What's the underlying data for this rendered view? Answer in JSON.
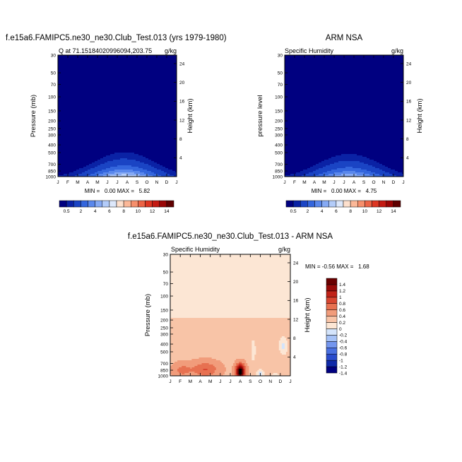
{
  "colors": {
    "abs_scale": [
      "#000080",
      "#0a22a5",
      "#1a44c4",
      "#3466dd",
      "#5a88ec",
      "#86aaf4",
      "#b3ccf9",
      "#dde8fb",
      "#fde0cd",
      "#fbb898",
      "#f68f6c",
      "#ec6446",
      "#dd3622",
      "#c41a12",
      "#9a0505",
      "#600000"
    ],
    "diff_scale": [
      "#000080",
      "#0f2aa9",
      "#2a4ccc",
      "#4a70e0",
      "#7496ee",
      "#a6c2f7",
      "#d4e4fb",
      "#fce6d4",
      "#f8c4a7",
      "#f19c7b",
      "#e77151",
      "#d84631",
      "#c02218",
      "#980a08",
      "#6a0000"
    ]
  },
  "chart_data": [
    {
      "type": "heatmap",
      "title": "f.e15a6.FAMIPC5.ne30_ne30.Club_Test.013 (yrs 1979-1980)",
      "subtitle_left": "Q at 71.15184020996094,203.75",
      "subtitle_right": "g/kg",
      "ylabel": "Pressure (mb)",
      "ylabel_right": "Height (km)",
      "x_ticks": [
        "J",
        "F",
        "M",
        "A",
        "M",
        "J",
        "J",
        "A",
        "S",
        "O",
        "N",
        "D",
        "J"
      ],
      "y_ticks": [
        "30",
        "50",
        "70",
        "100",
        "150",
        "200",
        "250",
        "300",
        "400",
        "500",
        "700",
        "850",
        "1000"
      ],
      "y_ticks_right": [
        "24",
        "20",
        "16",
        "12",
        "8",
        "4"
      ],
      "ylim": [
        1000,
        30
      ],
      "y_scale": "log",
      "stats": "MIN =   0.00 MAX =   5.82",
      "colorbar_labels": [
        "0.5",
        "2",
        "4",
        "6",
        "8",
        "10",
        "12",
        "14"
      ],
      "peak_value": 5.82,
      "peak_month": 6.7
    },
    {
      "type": "heatmap",
      "title": "ARM NSA",
      "subtitle_left": "Specific Humidity",
      "subtitle_right": "g/kg",
      "ylabel": "pressure level",
      "ylabel_right": "Height (km)",
      "x_ticks": [
        "J",
        "F",
        "M",
        "A",
        "M",
        "J",
        "J",
        "A",
        "S",
        "O",
        "N",
        "D",
        "J"
      ],
      "y_ticks": [
        "30",
        "50",
        "70",
        "100",
        "150",
        "200",
        "250",
        "300",
        "400",
        "500",
        "700",
        "850",
        "1000"
      ],
      "y_ticks_right": [
        "24",
        "20",
        "16",
        "12",
        "8",
        "4"
      ],
      "ylim": [
        1000,
        30
      ],
      "y_scale": "log",
      "stats": "MIN =   0.00 MAX =   4.75",
      "colorbar_labels": [
        "0.5",
        "2",
        "4",
        "6",
        "8",
        "10",
        "12",
        "14"
      ],
      "peak_value": 4.75,
      "peak_month": 6.5
    },
    {
      "type": "heatmap",
      "title": "f.e15a6.FAMIPC5.ne30_ne30.Club_Test.013 - ARM NSA",
      "subtitle_left": "Specific Humidity",
      "subtitle_right": "g/kg",
      "ylabel": "Pressure (mb)",
      "ylabel_right": "Height (km)",
      "x_ticks": [
        "J",
        "F",
        "M",
        "A",
        "M",
        "J",
        "J",
        "A",
        "S",
        "O",
        "N",
        "D",
        "J"
      ],
      "y_ticks": [
        "30",
        "50",
        "70",
        "100",
        "150",
        "200",
        "250",
        "300",
        "400",
        "500",
        "700",
        "850",
        "1000"
      ],
      "y_ticks_right": [
        "24",
        "20",
        "16",
        "12",
        "8",
        "4"
      ],
      "ylim": [
        1000,
        30
      ],
      "y_scale": "log",
      "stats": "MIN = -0.56 MAX =   1.68",
      "colorbar_labels": [
        "1.4",
        "1.2",
        "1",
        "0.8",
        "0.6",
        "0.4",
        "0.2",
        "0",
        "-0.2",
        "-0.4",
        "-0.6",
        "-0.8",
        "-1",
        "-1.2",
        "-1.4"
      ],
      "min_value": -0.56,
      "max_value": 1.68
    }
  ]
}
